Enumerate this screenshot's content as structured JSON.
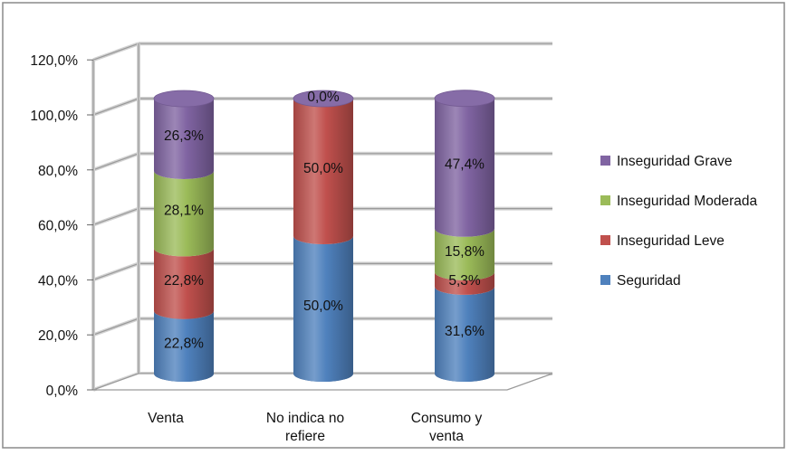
{
  "chart_data": {
    "type": "bar",
    "stacked": true,
    "orientation": "vertical",
    "style": "3d-cylinder",
    "categories": [
      "Venta",
      "No indica no\nrefiere",
      "Consumo y\nventa"
    ],
    "series": [
      {
        "name": "Seguridad",
        "color": "#4f81bd",
        "values": [
          22.8,
          50.0,
          31.6
        ],
        "labels": [
          "22,8%",
          "50,0%",
          "31,6%"
        ]
      },
      {
        "name": "Inseguridad Leve",
        "color": "#c0504d",
        "values": [
          22.8,
          50.0,
          5.3
        ],
        "labels": [
          "22,8%",
          "50,0%",
          "5,3%"
        ]
      },
      {
        "name": "Inseguridad Moderada",
        "color": "#9bbb59",
        "values": [
          28.1,
          0.0,
          15.8
        ],
        "labels": [
          "28,1%",
          "",
          "15,8%"
        ]
      },
      {
        "name": "Inseguridad Grave",
        "color": "#8064a2",
        "values": [
          26.3,
          0.0,
          47.4
        ],
        "labels": [
          "26,3%",
          "0,0%",
          "47,4%"
        ]
      }
    ],
    "y_ticks": [
      "0,0%",
      "20,0%",
      "40,0%",
      "60,0%",
      "80,0%",
      "100,0%",
      "120,0%"
    ],
    "ylim": [
      0,
      120
    ],
    "grid": true,
    "legend_position": "right",
    "legend_order": [
      "Inseguridad Grave",
      "Inseguridad Moderada",
      "Inseguridad Leve",
      "Seguridad"
    ],
    "title": "",
    "xlabel": "",
    "ylabel": ""
  }
}
